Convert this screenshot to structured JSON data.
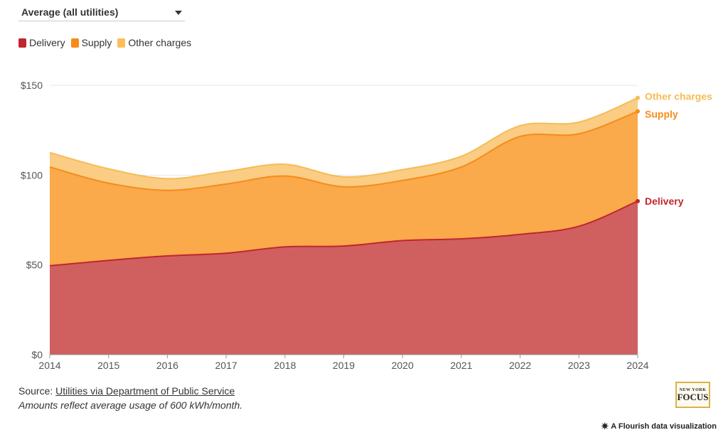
{
  "dropdown": {
    "selected": "Average (all utilities)"
  },
  "legend": [
    {
      "label": "Delivery",
      "color": "#c0262d"
    },
    {
      "label": "Supply",
      "color": "#f78b1a"
    },
    {
      "label": "Other charges",
      "color": "#fbbf5a"
    }
  ],
  "footer": {
    "source_prefix": "Source: ",
    "source_link": "Utilities via Department of Public Service",
    "note": "Amounts reflect average usage of 600 kWh/month."
  },
  "logo": {
    "top": "NEW YORK",
    "main": "FOCUS"
  },
  "credit": {
    "label": "A Flourish data visualization",
    "icon": "flourish-star-icon"
  },
  "colors": {
    "delivery_area": "#d06060",
    "supply_area": "#faa94b",
    "other_area": "#fbcc83",
    "delivery_line": "#c0262d",
    "supply_line": "#f78b1a",
    "other_line": "#f5bc55"
  },
  "chart_data": {
    "type": "area",
    "stacked": true,
    "x": [
      "2014",
      "2015",
      "2016",
      "2017",
      "2018",
      "2019",
      "2020",
      "2021",
      "2022",
      "2023",
      "2024"
    ],
    "series": [
      {
        "name": "Delivery",
        "values": [
          49.5,
          52.5,
          55,
          56.5,
          60,
          60.5,
          63.5,
          64.5,
          67,
          71.5,
          85.5
        ]
      },
      {
        "name": "Supply",
        "values": [
          55,
          43,
          36.5,
          38.5,
          39.5,
          33,
          33.5,
          40,
          54.5,
          51.5,
          50
        ]
      },
      {
        "name": "Other charges",
        "values": [
          8,
          8,
          6.5,
          7,
          6.5,
          5.5,
          6,
          6,
          6,
          6.5,
          7.5
        ]
      }
    ],
    "end_labels": [
      "Delivery",
      "Supply",
      "Other charges"
    ],
    "y_ticks": [
      0,
      50,
      100,
      150
    ],
    "y_tick_labels": [
      "$0",
      "$50",
      "$100",
      "$150"
    ],
    "ylim": [
      0,
      150
    ],
    "grid": true,
    "legend_position": "top-left"
  }
}
